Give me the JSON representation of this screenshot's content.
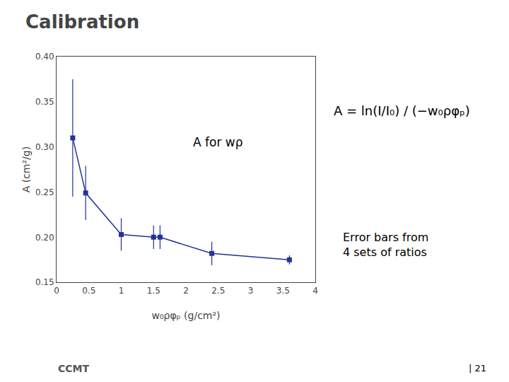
{
  "chart_data": {
    "type": "line",
    "title": "Calibration",
    "x_label": "w₀ρφₚ (g/cm²)",
    "y_label": "A (cm²/g)",
    "x": [
      0.25,
      0.45,
      1.0,
      1.5,
      1.6,
      2.4,
      3.6
    ],
    "values": [
      0.31,
      0.249,
      0.203,
      0.2,
      0.2,
      0.182,
      0.175
    ],
    "errors": [
      0.065,
      0.03,
      0.018,
      0.013,
      0.013,
      0.013,
      0.005
    ],
    "color": "#22339a",
    "marker": "square",
    "line_style": "solid",
    "xlim": [
      0,
      4
    ],
    "ylim": [
      0.15,
      0.4
    ],
    "xticks": [
      0,
      0.5,
      1,
      1.5,
      2,
      2.5,
      3,
      3.5,
      4
    ],
    "yticks": [
      0.15,
      {
        "value": 0.2,
        "label": "0.20"
      },
      0.25,
      {
        "value": 0.3,
        "label": "0.30"
      },
      0.35,
      {
        "value": 0.4,
        "label": "0.40"
      }
    ],
    "grid": false,
    "annotations": [
      "A for wρ",
      "A = ln(I/I₀) / (−w₀ρφₚ)",
      "Error bars from\n4 sets of ratios",
      "CCMT",
      "| 21"
    ]
  }
}
